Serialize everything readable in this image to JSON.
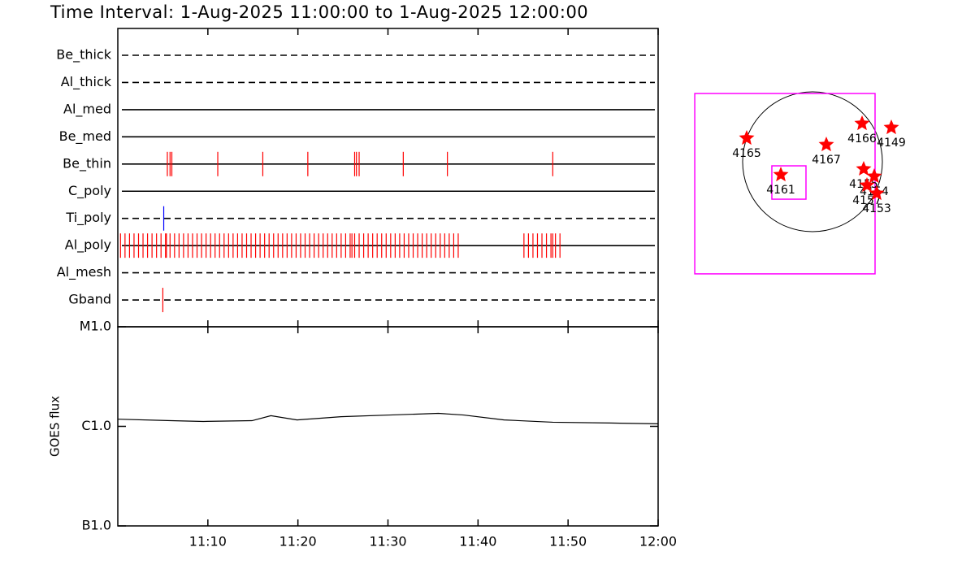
{
  "title": "Time Interval:  1-Aug-2025 11:00:00 to  1-Aug-2025 12:00:00",
  "chart_data": [
    {
      "type": "timeline",
      "xlim": [
        0,
        60
      ],
      "series": [
        {
          "name": "Be_thick",
          "line": "dashed",
          "color": "#ff0000",
          "values": []
        },
        {
          "name": "Al_thick",
          "line": "dashed",
          "color": "#ff0000",
          "values": []
        },
        {
          "name": "Al_med",
          "line": "solid",
          "color": "#ff0000",
          "values": []
        },
        {
          "name": "Be_med",
          "line": "solid",
          "color": "#ff0000",
          "values": []
        },
        {
          "name": "Be_thin",
          "line": "solid",
          "color": "#ff0000",
          "values": [
            5.5,
            5.8,
            6.0,
            11.1,
            16.1,
            21.1,
            26.3,
            26.5,
            26.8,
            31.7,
            36.6,
            48.3
          ]
        },
        {
          "name": "C_poly",
          "line": "solid",
          "color": "#ff0000",
          "values": []
        },
        {
          "name": "Ti_poly",
          "line": "dashed",
          "color": "#0000ff",
          "values": [
            5.1
          ]
        },
        {
          "name": "Al_poly",
          "line": "solid",
          "color": "#ff0000",
          "values": [
            0.3,
            0.8,
            1.3,
            1.8,
            2.3,
            2.8,
            3.3,
            3.8,
            4.3,
            4.8,
            5.3,
            5.4,
            5.8,
            6.3,
            6.8,
            7.3,
            7.8,
            8.3,
            8.8,
            9.3,
            9.8,
            10.3,
            10.8,
            11.3,
            11.8,
            12.3,
            12.8,
            13.3,
            13.8,
            14.3,
            14.8,
            15.3,
            15.8,
            16.3,
            16.8,
            17.3,
            17.8,
            18.3,
            18.8,
            19.3,
            19.8,
            20.3,
            20.8,
            21.3,
            21.8,
            22.3,
            22.8,
            23.3,
            23.8,
            24.3,
            24.8,
            25.3,
            25.8,
            26.0,
            26.3,
            26.8,
            27.3,
            27.8,
            28.3,
            28.8,
            29.3,
            29.8,
            30.3,
            30.8,
            31.3,
            31.8,
            32.3,
            32.8,
            33.3,
            33.8,
            34.3,
            34.8,
            35.3,
            35.8,
            36.3,
            36.8,
            37.3,
            37.8,
            45.1,
            45.6,
            46.1,
            46.6,
            47.1,
            47.6,
            48.1,
            48.3,
            48.6,
            49.1
          ]
        },
        {
          "name": "Al_mesh",
          "line": "dashed",
          "color": "#ff0000",
          "values": []
        },
        {
          "name": "Gband",
          "line": "dashed",
          "color": "#ff0000",
          "values": [
            5.0
          ]
        }
      ]
    },
    {
      "type": "line",
      "y_label": "GOES flux",
      "log_y": true,
      "color": "#000000",
      "x": [
        0,
        5.9,
        9.5,
        14.9,
        17.0,
        19.9,
        24.8,
        30.2,
        35.6,
        38.4,
        42.9,
        48.3,
        54.6,
        60
      ],
      "values": [
        1.18e-06,
        1.14e-06,
        1.12e-06,
        1.14e-06,
        1.28e-06,
        1.16e-06,
        1.25e-06,
        1.3e-06,
        1.35e-06,
        1.3e-06,
        1.16e-06,
        1.1e-06,
        1.08e-06,
        1.06e-06
      ],
      "xlim": [
        0,
        60
      ],
      "xticks": [
        {
          "value": 10,
          "label": "11:10"
        },
        {
          "value": 20,
          "label": "11:20"
        },
        {
          "value": 30,
          "label": "11:30"
        },
        {
          "value": 40,
          "label": "11:40"
        },
        {
          "value": 50,
          "label": "11:50"
        },
        {
          "value": 60,
          "label": "12:00"
        }
      ],
      "ylim": [
        1e-07,
        1e-05
      ],
      "yticks": [
        {
          "value": 1e-07,
          "label": "B1.0"
        },
        {
          "value": 1e-06,
          "label": "C1.0"
        },
        {
          "value": 1e-05,
          "label": "M1.0"
        }
      ]
    },
    {
      "type": "map",
      "disk_radius": 960,
      "box_color": "#ff00ff",
      "color": "#ff0000",
      "fov": [
        -379,
        -301,
        2477,
        2477
      ],
      "sub_fov": [
        -324,
        -285,
        469,
        458
      ],
      "regions": [
        {
          "label": "4165",
          "x": -904,
          "y": 324
        },
        {
          "label": "4167",
          "x": 190,
          "y": 234
        },
        {
          "label": "4166",
          "x": 681,
          "y": 525
        },
        {
          "label": "4149",
          "x": 1083,
          "y": 469
        },
        {
          "label": "4161",
          "x": -435,
          "y": -179
        },
        {
          "label": "4155",
          "x": 703,
          "y": -100
        },
        {
          "label": "4154",
          "x": 848,
          "y": -201
        },
        {
          "label": "4157",
          "x": 748,
          "y": -324
        },
        {
          "label": "4153",
          "x": 882,
          "y": -435
        }
      ]
    }
  ]
}
